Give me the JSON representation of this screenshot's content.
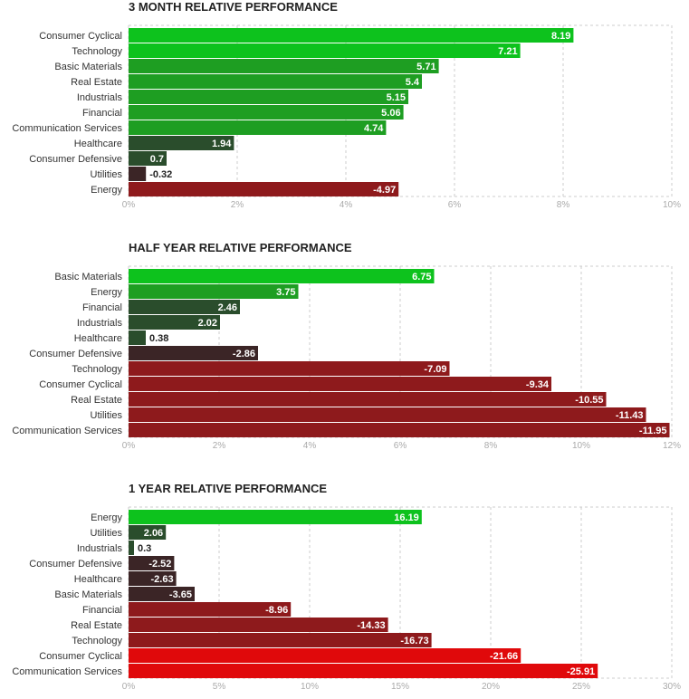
{
  "colors": {
    "strong_positive": "#0dc21d",
    "mid_positive": "#1e9e22",
    "weak_positive": "#2a4d2c",
    "weak_negative": "#3b2526",
    "mid_negative": "#8e1a1c",
    "strong_negative": "#e0090b",
    "grid": "#cccccc"
  },
  "chart_data": [
    {
      "type": "bar",
      "orientation": "horizontal",
      "title": "3 MONTH RELATIVE PERFORMANCE",
      "categories": [
        "Consumer Cyclical",
        "Technology",
        "Basic Materials",
        "Real Estate",
        "Industrials",
        "Financial",
        "Communication Services",
        "Healthcare",
        "Consumer Defensive",
        "Utilities",
        "Energy"
      ],
      "values": [
        8.19,
        7.21,
        5.71,
        5.4,
        5.15,
        5.06,
        4.74,
        1.94,
        0.7,
        -0.32,
        -4.97
      ],
      "value_labels": [
        "8.19",
        "7.21",
        "5.71",
        "5.4",
        "5.15",
        "5.06",
        "4.74",
        "1.94",
        "0.7",
        "-0.32",
        "-4.97"
      ],
      "xlim": [
        0,
        10
      ],
      "ticks": [
        0,
        2,
        4,
        6,
        8,
        10
      ],
      "tick_labels": [
        "0%",
        "2%",
        "4%",
        "6%",
        "8%",
        "10%"
      ],
      "bar_length": "absolute value",
      "grid": true
    },
    {
      "type": "bar",
      "orientation": "horizontal",
      "title": "HALF YEAR RELATIVE PERFORMANCE",
      "categories": [
        "Basic Materials",
        "Energy",
        "Financial",
        "Industrials",
        "Healthcare",
        "Consumer Defensive",
        "Technology",
        "Consumer Cyclical",
        "Real Estate",
        "Utilities",
        "Communication Services"
      ],
      "values": [
        6.75,
        3.75,
        2.46,
        2.02,
        0.38,
        -2.86,
        -7.09,
        -9.34,
        -10.55,
        -11.43,
        -11.95
      ],
      "value_labels": [
        "6.75",
        "3.75",
        "2.46",
        "2.02",
        "0.38",
        "-2.86",
        "-7.09",
        "-9.34",
        "-10.55",
        "-11.43",
        "-11.95"
      ],
      "xlim": [
        0,
        12
      ],
      "ticks": [
        0,
        2,
        4,
        6,
        8,
        10,
        12
      ],
      "tick_labels": [
        "0%",
        "2%",
        "4%",
        "6%",
        "8%",
        "10%",
        "12%"
      ],
      "bar_length": "absolute value",
      "grid": true
    },
    {
      "type": "bar",
      "orientation": "horizontal",
      "title": "1 YEAR RELATIVE PERFORMANCE",
      "categories": [
        "Energy",
        "Utilities",
        "Industrials",
        "Consumer Defensive",
        "Healthcare",
        "Basic Materials",
        "Financial",
        "Real Estate",
        "Technology",
        "Consumer Cyclical",
        "Communication Services"
      ],
      "values": [
        16.19,
        2.06,
        0.3,
        -2.52,
        -2.63,
        -3.65,
        -8.96,
        -14.33,
        -16.73,
        -21.66,
        -25.91
      ],
      "value_labels": [
        "16.19",
        "2.06",
        "0.3",
        "-2.52",
        "-2.63",
        "-3.65",
        "-8.96",
        "-14.33",
        "-16.73",
        "-21.66",
        "-25.91"
      ],
      "xlim": [
        0,
        30
      ],
      "ticks": [
        0,
        5,
        10,
        15,
        20,
        25,
        30
      ],
      "tick_labels": [
        "0%",
        "5%",
        "10%",
        "15%",
        "20%",
        "25%",
        "30%"
      ],
      "bar_length": "absolute value",
      "grid": true
    }
  ]
}
